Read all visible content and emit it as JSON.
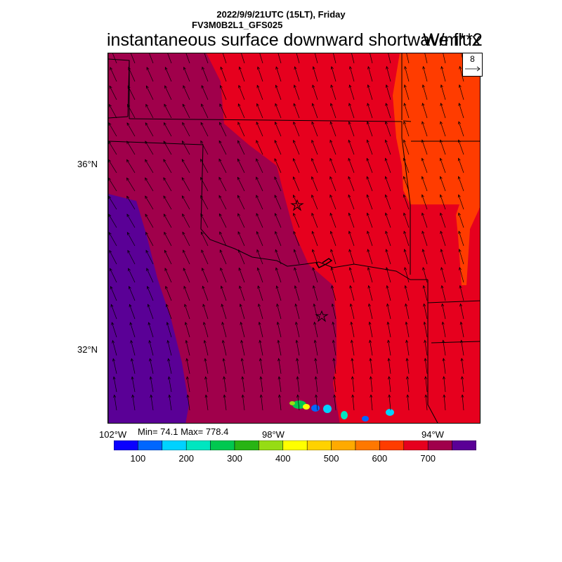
{
  "header": {
    "line1": "2022/9/9/21UTC (15LT), Friday",
    "line2": "FV3M0B2L1_GFS025"
  },
  "title": "instantaneous surface downward shortwave flux",
  "units": "W/m**2",
  "vector_reference": {
    "value": "8"
  },
  "lat_labels": [
    "36°N",
    "32°N"
  ],
  "lon_labels": [
    "102°W",
    "98°W",
    "94°W"
  ],
  "stats": {
    "text": "Min= 74.1 Max= 778.4",
    "min": 74.1,
    "max": 778.4
  },
  "colorbar": {
    "colors": [
      "#0a00ff",
      "#0066ff",
      "#00d2ff",
      "#00e6c0",
      "#00c850",
      "#28b414",
      "#96dc14",
      "#ffff00",
      "#ffd200",
      "#ffaa00",
      "#ff7800",
      "#ff3c00",
      "#e6001e",
      "#a0004b",
      "#5a0096"
    ],
    "tick_labels": [
      "100",
      "200",
      "300",
      "400",
      "500",
      "600",
      "700"
    ],
    "tick_index": [
      1,
      3,
      5,
      7,
      9,
      11,
      13
    ]
  },
  "map": {
    "colors": {
      "band_750_plus": "#5a0096",
      "band_700_750": "#a0004b",
      "band_650_700": "#e6001e",
      "band_600_650": "#ff3c00"
    },
    "markers": [
      "star-icon",
      "star-icon"
    ]
  }
}
